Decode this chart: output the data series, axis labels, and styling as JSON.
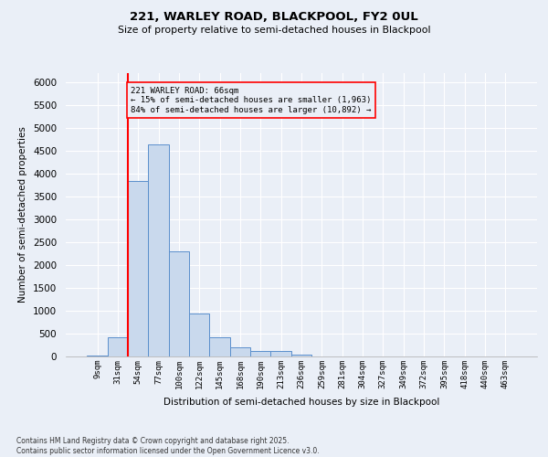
{
  "title1": "221, WARLEY ROAD, BLACKPOOL, FY2 0UL",
  "title2": "Size of property relative to semi-detached houses in Blackpool",
  "xlabel": "Distribution of semi-detached houses by size in Blackpool",
  "ylabel": "Number of semi-detached properties",
  "categories": [
    "9sqm",
    "31sqm",
    "54sqm",
    "77sqm",
    "100sqm",
    "122sqm",
    "145sqm",
    "168sqm",
    "190sqm",
    "213sqm",
    "236sqm",
    "259sqm",
    "281sqm",
    "304sqm",
    "327sqm",
    "349sqm",
    "372sqm",
    "395sqm",
    "418sqm",
    "440sqm",
    "463sqm"
  ],
  "values": [
    30,
    420,
    3850,
    4650,
    2300,
    950,
    420,
    200,
    120,
    120,
    50,
    10,
    5,
    2,
    1,
    1,
    0,
    0,
    0,
    0,
    0
  ],
  "bar_color": "#c9d9ed",
  "bar_edge_color": "#5b8fcc",
  "annotation_title": "221 WARLEY ROAD: 66sqm",
  "annotation_line1": "← 15% of semi-detached houses are smaller (1,963)",
  "annotation_line2": "84% of semi-detached houses are larger (10,892) →",
  "ylim": [
    0,
    6200
  ],
  "yticks": [
    0,
    500,
    1000,
    1500,
    2000,
    2500,
    3000,
    3500,
    4000,
    4500,
    5000,
    5500,
    6000
  ],
  "bg_color": "#eaeff7",
  "grid_color": "#ffffff",
  "footnote1": "Contains HM Land Registry data © Crown copyright and database right 2025.",
  "footnote2": "Contains public sector information licensed under the Open Government Licence v3.0."
}
